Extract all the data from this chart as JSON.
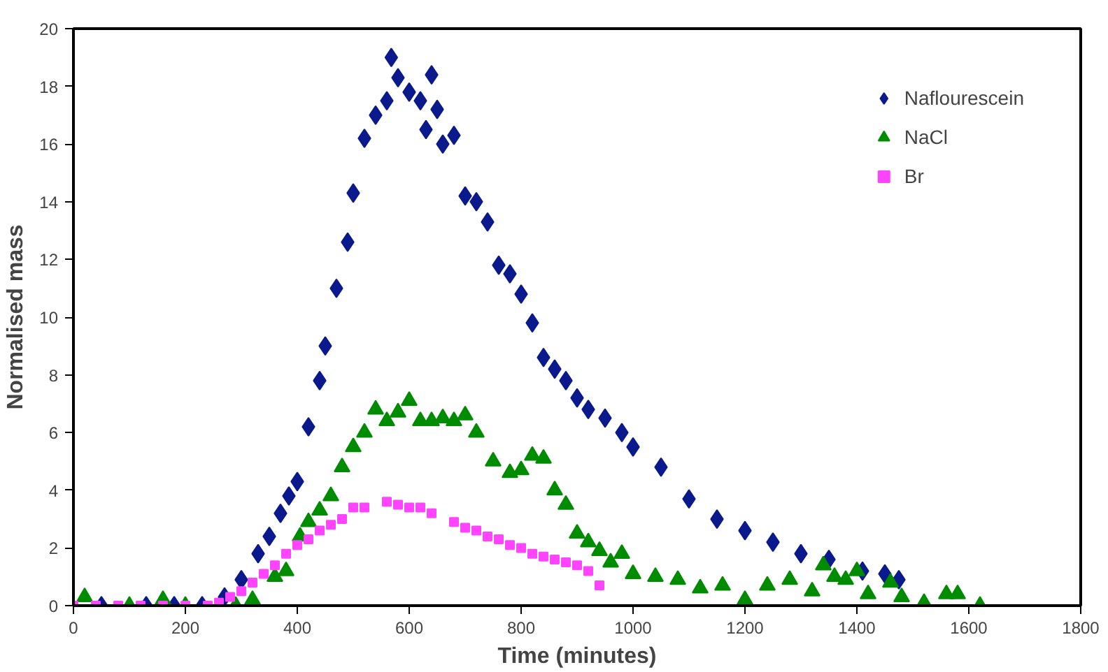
{
  "chart_data": {
    "type": "scatter",
    "xlabel": "Time (minutes)",
    "ylabel": "Normalised mass",
    "xlim": [
      0,
      1800
    ],
    "ylim": [
      0,
      20
    ],
    "xticks": [
      0,
      200,
      400,
      600,
      800,
      1000,
      1200,
      1400,
      1600,
      1800
    ],
    "yticks": [
      0,
      2,
      4,
      6,
      8,
      10,
      12,
      14,
      16,
      18,
      20
    ],
    "grid": false,
    "legend": "top right",
    "series": [
      {
        "name": "Naflourescein",
        "color": "#0a1a8c",
        "marker": "diamond",
        "x": [
          50,
          130,
          180,
          230,
          270,
          300,
          330,
          350,
          370,
          385,
          400,
          420,
          440,
          450,
          470,
          490,
          500,
          520,
          540,
          560,
          568,
          580,
          600,
          620,
          630,
          640,
          650,
          660,
          680,
          700,
          720,
          740,
          760,
          780,
          800,
          820,
          840,
          860,
          880,
          900,
          920,
          950,
          980,
          1000,
          1050,
          1100,
          1150,
          1200,
          1250,
          1300,
          1350,
          1410,
          1450,
          1475
        ],
        "values": [
          0,
          0,
          0,
          0,
          0.3,
          0.9,
          1.8,
          2.4,
          3.2,
          3.8,
          4.3,
          6.2,
          7.8,
          9,
          11,
          12.6,
          14.3,
          16.2,
          17,
          17.5,
          19,
          18.3,
          17.8,
          17.5,
          16.5,
          18.4,
          17.2,
          16,
          16.3,
          14.2,
          14,
          13.3,
          11.8,
          11.5,
          10.8,
          9.8,
          8.6,
          8.2,
          7.8,
          7.2,
          6.8,
          6.5,
          6,
          5.5,
          4.8,
          3.7,
          3,
          2.6,
          2.2,
          1.8,
          1.6,
          1.2,
          1.1,
          0.9
        ]
      },
      {
        "name": "NaCl",
        "color": "#008c00",
        "marker": "triangle",
        "x": [
          20,
          100,
          160,
          200,
          290,
          320,
          360,
          380,
          405,
          420,
          440,
          460,
          480,
          500,
          520,
          540,
          560,
          580,
          600,
          620,
          640,
          660,
          680,
          700,
          720,
          750,
          780,
          800,
          820,
          840,
          860,
          880,
          900,
          920,
          940,
          960,
          980,
          1000,
          1040,
          1080,
          1120,
          1160,
          1200,
          1240,
          1280,
          1320,
          1340,
          1360,
          1380,
          1400,
          1420,
          1460,
          1480,
          1520,
          1560,
          1580,
          1620
        ],
        "values": [
          0.3,
          0,
          0.2,
          0,
          0,
          0.2,
          1,
          1.2,
          2.4,
          2.9,
          3.3,
          3.8,
          4.8,
          5.5,
          6,
          6.8,
          6.4,
          6.7,
          7.1,
          6.4,
          6.4,
          6.5,
          6.4,
          6.6,
          6,
          5,
          4.6,
          4.7,
          5.2,
          5.1,
          4,
          3.5,
          2.5,
          2.2,
          1.9,
          1.5,
          1.8,
          1.1,
          1,
          0.9,
          0.6,
          0.7,
          0.2,
          0.7,
          0.9,
          0.5,
          1.4,
          1,
          0.9,
          1.2,
          0.4,
          0.8,
          0.3,
          0.1,
          0.4,
          0.4,
          0
        ]
      },
      {
        "name": "Br",
        "color": "#ff44ff",
        "marker": "square",
        "x": [
          0,
          40,
          80,
          120,
          160,
          200,
          240,
          260,
          280,
          300,
          320,
          340,
          360,
          380,
          400,
          420,
          440,
          460,
          480,
          500,
          520,
          560,
          580,
          600,
          620,
          640,
          680,
          700,
          720,
          740,
          760,
          780,
          800,
          820,
          840,
          860,
          880,
          900,
          920,
          940
        ],
        "values": [
          0,
          0,
          0,
          0,
          0,
          0,
          0,
          0.1,
          0.3,
          0.5,
          0.8,
          1.1,
          1.4,
          1.8,
          2.1,
          2.3,
          2.6,
          2.8,
          3,
          3.4,
          3.4,
          3.6,
          3.5,
          3.4,
          3.4,
          3.2,
          2.9,
          2.7,
          2.6,
          2.4,
          2.3,
          2.1,
          2,
          1.8,
          1.7,
          1.6,
          1.5,
          1.4,
          1.2,
          0.7
        ]
      }
    ]
  }
}
